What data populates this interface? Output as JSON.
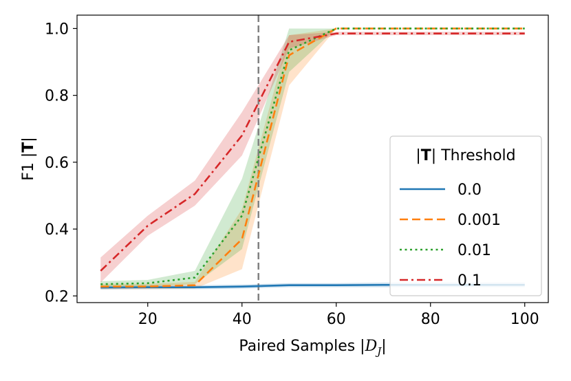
{
  "chart_data": {
    "type": "line",
    "xlabel_prefix": "Paired Samples |",
    "xlabel_symbol": "D",
    "xlabel_subscript": "J",
    "xlabel_suffix": "|",
    "ylabel_prefix": "F1 |",
    "ylabel_bold": "T",
    "ylabel_suffix": "|",
    "xlim": [
      5,
      105
    ],
    "ylim": [
      0.18,
      1.04
    ],
    "xticks": [
      20,
      40,
      60,
      80,
      100
    ],
    "yticks": [
      0.2,
      0.4,
      0.6,
      0.8,
      1.0
    ],
    "xtick_labels": [
      "20",
      "40",
      "60",
      "80",
      "100"
    ],
    "ytick_labels": [
      "0.2",
      "0.4",
      "0.6",
      "0.8",
      "1.0"
    ],
    "vline_x": 43.5,
    "legend": {
      "title_prefix": "|",
      "title_bold": "T",
      "title_suffix": "| Threshold",
      "position": "lower-right"
    },
    "x": [
      10,
      20,
      30,
      40,
      50,
      60,
      70,
      80,
      90,
      100
    ],
    "series": [
      {
        "name": "0.0",
        "color": "#1f77b4",
        "dash": "solid",
        "values": [
          0.225,
          0.226,
          0.226,
          0.228,
          0.232,
          0.232,
          0.233,
          0.233,
          0.233,
          0.233
        ],
        "lower": [
          0.219,
          0.22,
          0.22,
          0.222,
          0.226,
          0.226,
          0.226,
          0.226,
          0.226,
          0.226
        ],
        "upper": [
          0.231,
          0.232,
          0.232,
          0.234,
          0.238,
          0.238,
          0.24,
          0.24,
          0.24,
          0.24
        ]
      },
      {
        "name": "0.001",
        "color": "#ff7f0e",
        "dash": "dashed",
        "values": [
          0.228,
          0.228,
          0.232,
          0.37,
          0.92,
          1.0,
          1.0,
          1.0,
          1.0,
          1.0
        ],
        "lower": [
          0.22,
          0.22,
          0.222,
          0.28,
          0.83,
          1.0,
          1.0,
          1.0,
          1.0,
          1.0
        ],
        "upper": [
          0.236,
          0.236,
          0.242,
          0.46,
          0.98,
          1.0,
          1.0,
          1.0,
          1.0,
          1.0
        ]
      },
      {
        "name": "0.01",
        "color": "#2ca02c",
        "dash": "dotted",
        "values": [
          0.235,
          0.238,
          0.255,
          0.44,
          0.935,
          1.0,
          1.0,
          1.0,
          1.0,
          1.0
        ],
        "lower": [
          0.226,
          0.228,
          0.235,
          0.34,
          0.87,
          1.0,
          1.0,
          1.0,
          1.0,
          1.0
        ],
        "upper": [
          0.244,
          0.248,
          0.275,
          0.55,
          1.0,
          1.0,
          1.0,
          1.0,
          1.0,
          1.0
        ]
      },
      {
        "name": "0.1",
        "color": "#d62728",
        "dash": "dashdot",
        "values": [
          0.275,
          0.41,
          0.505,
          0.68,
          0.96,
          0.985,
          0.985,
          0.985,
          0.985,
          0.985
        ],
        "lower": [
          0.24,
          0.38,
          0.47,
          0.62,
          0.94,
          0.98,
          0.98,
          0.98,
          0.98,
          0.98
        ],
        "upper": [
          0.315,
          0.44,
          0.545,
          0.75,
          0.98,
          0.99,
          0.99,
          0.99,
          0.99,
          0.99
        ]
      }
    ]
  }
}
